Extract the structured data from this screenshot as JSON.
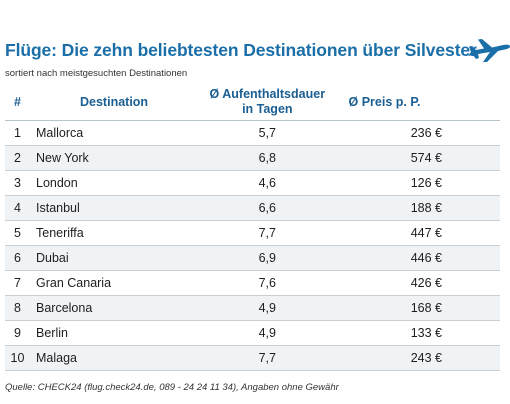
{
  "header": {
    "title": "Flüge: Die zehn beliebtesten Destinationen über Silvester",
    "subtitle": "sortiert nach meistgesuchten Destinationen",
    "icon": "airplane-icon",
    "accent_color": "#1b6fa8"
  },
  "table": {
    "columns": {
      "rank": "#",
      "destination": "Destination",
      "stay_line1": "Ø Aufenthaltsdauer",
      "stay_line2": "in Tagen",
      "price": "Ø Preis p. P."
    },
    "rows": [
      {
        "rank": "1",
        "destination": "Mallorca",
        "stay": "5,7",
        "price": "236 €"
      },
      {
        "rank": "2",
        "destination": "New York",
        "stay": "6,8",
        "price": "574 €"
      },
      {
        "rank": "3",
        "destination": "London",
        "stay": "4,6",
        "price": "126 €"
      },
      {
        "rank": "4",
        "destination": "Istanbul",
        "stay": "6,6",
        "price": "188 €"
      },
      {
        "rank": "5",
        "destination": "Teneriffa",
        "stay": "7,7",
        "price": "447 €"
      },
      {
        "rank": "6",
        "destination": "Dubai",
        "stay": "6,9",
        "price": "446 €"
      },
      {
        "rank": "7",
        "destination": "Gran Canaria",
        "stay": "7,6",
        "price": "426 €"
      },
      {
        "rank": "8",
        "destination": "Barcelona",
        "stay": "4,9",
        "price": "168 €"
      },
      {
        "rank": "9",
        "destination": "Berlin",
        "stay": "4,9",
        "price": "133 €"
      },
      {
        "rank": "10",
        "destination": "Malaga",
        "stay": "7,7",
        "price": "243 €"
      }
    ]
  },
  "footer": {
    "source": "Quelle: CHECK24 (flug.check24.de, 089 - 24 24 11 34), Angaben ohne Gewähr"
  }
}
